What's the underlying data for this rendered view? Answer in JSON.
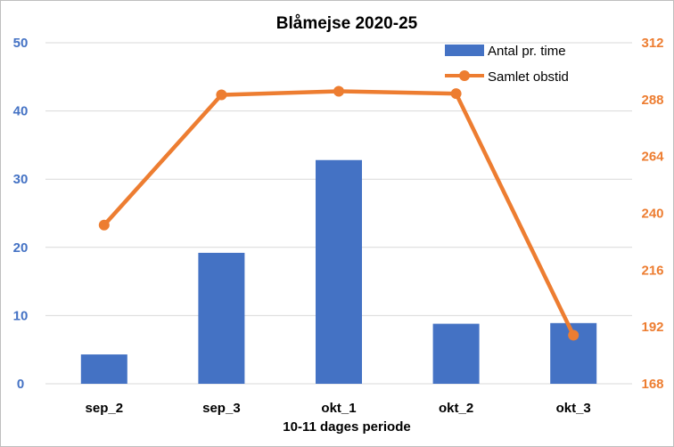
{
  "chart_data": {
    "type": "bar+line",
    "title": "Blåmejse 2020-25",
    "xlabel": "10-11 dages periode",
    "categories": [
      "sep_2",
      "sep_3",
      "okt_1",
      "okt_2",
      "okt_3"
    ],
    "grid": true,
    "legend_position": "top-right",
    "y_left": {
      "ylim": [
        0,
        50
      ],
      "ticks": [
        "0",
        "10",
        "20",
        "30",
        "40",
        "50"
      ],
      "color": "#4472c4"
    },
    "y_right": {
      "ylim": [
        168,
        312
      ],
      "ticks": [
        "168",
        "192",
        "216",
        "240",
        "264",
        "288",
        "312"
      ],
      "color": "#ed7d31"
    },
    "series": [
      {
        "name": "Antal pr. time",
        "type": "bar",
        "axis": "left",
        "color": "#4472c4",
        "values": [
          4.3,
          19.2,
          32.8,
          8.8,
          8.9
        ]
      },
      {
        "name": "Samlet obstid",
        "type": "line",
        "axis": "right",
        "color": "#ed7d31",
        "values": [
          235,
          290,
          291.5,
          290.5,
          188.5
        ]
      }
    ]
  }
}
